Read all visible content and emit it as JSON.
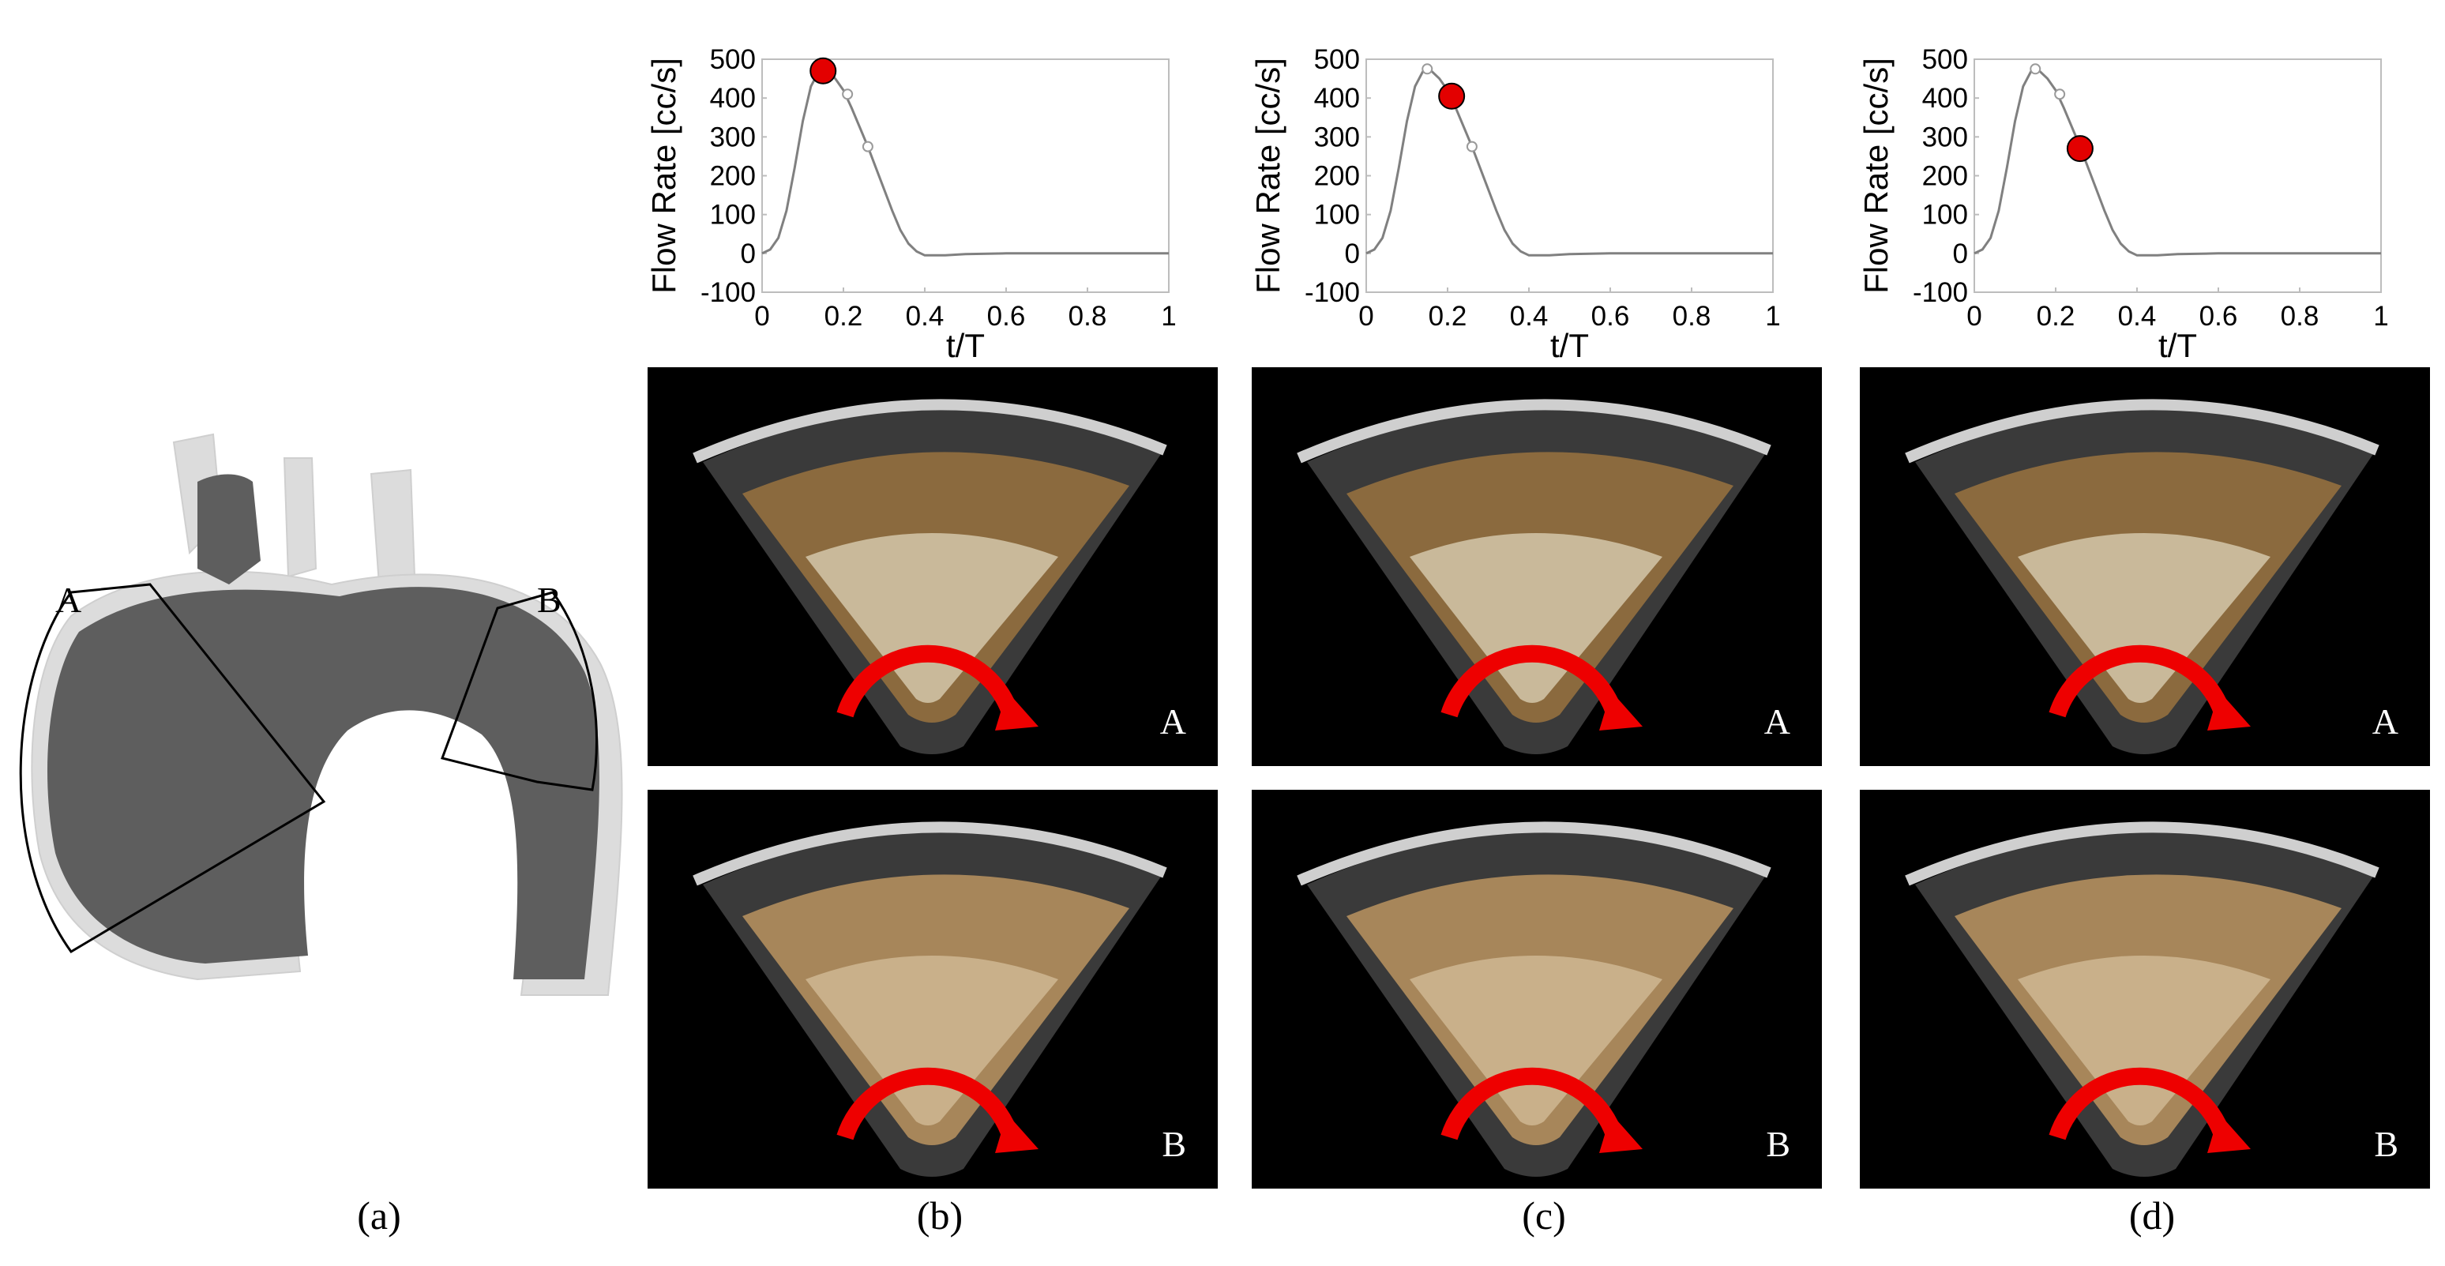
{
  "figure": {
    "captions": [
      "(a)",
      "(b)",
      "(c)",
      "(d)"
    ],
    "region_labels": [
      "A",
      "B"
    ]
  },
  "chart_data": [
    {
      "type": "line",
      "panel": "(b)",
      "xlabel": "t/T",
      "ylabel": "Flow Rate [cc/s]",
      "xlim": [
        0,
        1
      ],
      "ylim": [
        -100,
        500
      ],
      "xticks": [
        "0",
        "0.2",
        "0.4",
        "0.6",
        "0.8",
        "1"
      ],
      "yticks": [
        "500",
        "400",
        "300",
        "200",
        "100",
        "0",
        "-100"
      ],
      "x": [
        0,
        0.02,
        0.04,
        0.06,
        0.08,
        0.1,
        0.12,
        0.14,
        0.15,
        0.16,
        0.18,
        0.2,
        0.22,
        0.24,
        0.26,
        0.28,
        0.3,
        0.32,
        0.34,
        0.36,
        0.38,
        0.4,
        0.45,
        0.5,
        0.6,
        0.7,
        0.8,
        0.9,
        1.0
      ],
      "y": [
        0,
        10,
        40,
        110,
        220,
        340,
        430,
        470,
        475,
        470,
        450,
        420,
        375,
        325,
        275,
        220,
        165,
        110,
        60,
        25,
        5,
        -5,
        -5,
        -2,
        0,
        0,
        0,
        0,
        0
      ],
      "markers_hollow": [
        {
          "x": 0.15,
          "y": 475
        },
        {
          "x": 0.21,
          "y": 410
        },
        {
          "x": 0.26,
          "y": 275
        }
      ],
      "highlight": {
        "x": 0.15,
        "y": 470,
        "color": "#e30000"
      },
      "grid": false
    },
    {
      "type": "line",
      "panel": "(c)",
      "xlabel": "t/T",
      "ylabel": "Flow Rate [cc/s]",
      "xlim": [
        0,
        1
      ],
      "ylim": [
        -100,
        500
      ],
      "xticks": [
        "0",
        "0.2",
        "0.4",
        "0.6",
        "0.8",
        "1"
      ],
      "yticks": [
        "500",
        "400",
        "300",
        "200",
        "100",
        "0",
        "-100"
      ],
      "x": [
        0,
        0.02,
        0.04,
        0.06,
        0.08,
        0.1,
        0.12,
        0.14,
        0.15,
        0.16,
        0.18,
        0.2,
        0.22,
        0.24,
        0.26,
        0.28,
        0.3,
        0.32,
        0.34,
        0.36,
        0.38,
        0.4,
        0.45,
        0.5,
        0.6,
        0.7,
        0.8,
        0.9,
        1.0
      ],
      "y": [
        0,
        10,
        40,
        110,
        220,
        340,
        430,
        470,
        475,
        470,
        450,
        420,
        375,
        325,
        275,
        220,
        165,
        110,
        60,
        25,
        5,
        -5,
        -5,
        -2,
        0,
        0,
        0,
        0,
        0
      ],
      "markers_hollow": [
        {
          "x": 0.15,
          "y": 475
        },
        {
          "x": 0.21,
          "y": 410
        },
        {
          "x": 0.26,
          "y": 275
        }
      ],
      "highlight": {
        "x": 0.21,
        "y": 405,
        "color": "#e30000"
      },
      "grid": false
    },
    {
      "type": "line",
      "panel": "(d)",
      "xlabel": "t/T",
      "ylabel": "Flow Rate [cc/s]",
      "xlim": [
        0,
        1
      ],
      "ylim": [
        -100,
        500
      ],
      "xticks": [
        "0",
        "0.2",
        "0.4",
        "0.6",
        "0.8",
        "1"
      ],
      "yticks": [
        "500",
        "400",
        "300",
        "200",
        "100",
        "0",
        "-100"
      ],
      "x": [
        0,
        0.02,
        0.04,
        0.06,
        0.08,
        0.1,
        0.12,
        0.14,
        0.15,
        0.16,
        0.18,
        0.2,
        0.22,
        0.24,
        0.26,
        0.28,
        0.3,
        0.32,
        0.34,
        0.36,
        0.38,
        0.4,
        0.45,
        0.5,
        0.6,
        0.7,
        0.8,
        0.9,
        1.0
      ],
      "y": [
        0,
        10,
        40,
        110,
        220,
        340,
        430,
        470,
        475,
        470,
        450,
        420,
        375,
        325,
        275,
        220,
        165,
        110,
        60,
        25,
        5,
        -5,
        -5,
        -2,
        0,
        0,
        0,
        0,
        0
      ],
      "markers_hollow": [
        {
          "x": 0.15,
          "y": 475
        },
        {
          "x": 0.21,
          "y": 410
        }
      ],
      "highlight": {
        "x": 0.26,
        "y": 270,
        "color": "#e30000"
      },
      "grid": false
    }
  ],
  "colors": {
    "curve": "#808080",
    "highlight": "#e30000",
    "arrow": "#ee0000",
    "vessel_dark": "#5e5e5e",
    "vessel_light": "#dcdcdc"
  }
}
